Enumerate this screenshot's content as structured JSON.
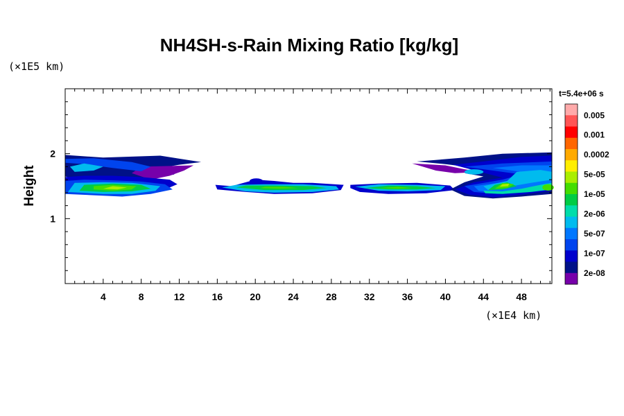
{
  "chart_data": {
    "type": "heatmap",
    "title": "NH4SH-s-Rain Mixing Ratio [kg/kg]",
    "ylabel": "Height",
    "xlabel": "",
    "x_scale_label": "(×1E4 km)",
    "y_scale_label": "(×1E5 km)",
    "time_label": "t=5.4e+06 s",
    "xlim": [
      0,
      51.2
    ],
    "ylim": [
      0,
      3.0
    ],
    "x_ticks": [
      4,
      8,
      12,
      16,
      20,
      24,
      28,
      32,
      36,
      40,
      44,
      48
    ],
    "x_tick_labels": [
      "4",
      "8",
      "12",
      "16",
      "20",
      "24",
      "28",
      "32",
      "36",
      "40",
      "44",
      "48"
    ],
    "y_ticks": [
      1,
      2
    ],
    "y_tick_labels": [
      "1",
      "2"
    ],
    "colorbar": {
      "labels": [
        "0.005",
        "0.001",
        "0.0002",
        "5e-05",
        "1e-05",
        "2e-06",
        "5e-07",
        "1e-07",
        "2e-08"
      ],
      "colors_top_to_bottom": [
        "#ffaaaa",
        "#ff5555",
        "#ff0000",
        "#ff6600",
        "#ffaa00",
        "#ffee00",
        "#aaee00",
        "#44dd00",
        "#00cc44",
        "#00ddaa",
        "#00bbee",
        "#0077ff",
        "#0044ee",
        "#0000cc",
        "#001188",
        "#7700aa"
      ]
    },
    "level_colors": {
      "purple": "#7700aa",
      "navy": "#001188",
      "blue": "#0000cc",
      "mid_blue": "#0044ee",
      "light_blue": "#0077ff",
      "cyan": "#00bbee",
      "aqua": "#00ddaa",
      "green": "#00cc44",
      "lime": "#44dd00",
      "yellow_green": "#aaee00",
      "yellow": "#ffee00"
    },
    "grid": false
  }
}
